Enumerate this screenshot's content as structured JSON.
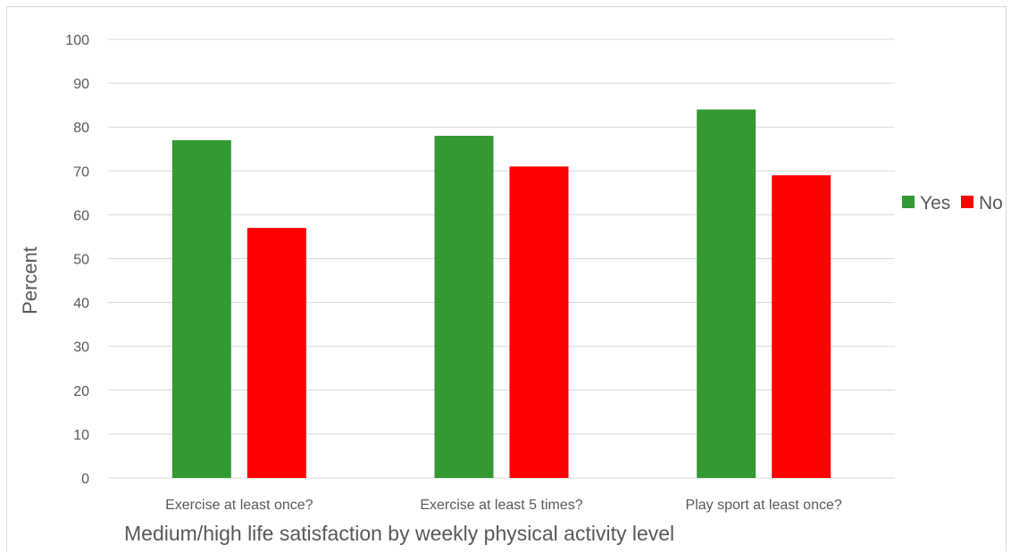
{
  "chart_data": {
    "type": "bar",
    "categories": [
      "Exercise at least once?",
      "Exercise at least 5 times?",
      "Play sport at least once?"
    ],
    "series": [
      {
        "name": "Yes",
        "color": "#339933",
        "values": [
          77,
          78,
          84
        ]
      },
      {
        "name": "No",
        "color": "#ff0000",
        "values": [
          57,
          71,
          69
        ]
      }
    ],
    "title": "",
    "xlabel": "Medium/high life satisfaction by weekly physical activity level",
    "ylabel": "Percent",
    "ylim": [
      0,
      100
    ],
    "yticks": [
      0,
      10,
      20,
      30,
      40,
      50,
      60,
      70,
      80,
      90,
      100
    ],
    "grid": true,
    "legend_position": "right"
  }
}
